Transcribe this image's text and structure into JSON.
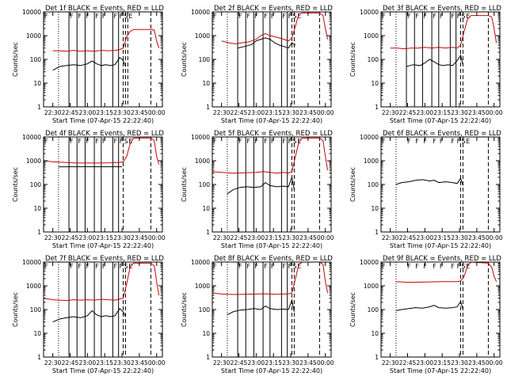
{
  "figure": {
    "ylabel": "Counts/sec",
    "xlabel": "Start Time (07-Apr-15 22:22:40)",
    "x_ticks": [
      "22:30",
      "22:45",
      "23:00",
      "23:15",
      "23:30",
      "23:45",
      "00:00"
    ],
    "y_ticks": [
      "1",
      "10",
      "100",
      "1000",
      "10000"
    ],
    "colors": {
      "events": "#000000",
      "lld": "#cc0000",
      "axes": "#000000"
    }
  },
  "chart_data": [
    {
      "type": "line",
      "title": "Det 1f BLACK = Events, RED = LLD",
      "xlabel": "Start Time (07-Apr-15 22:22:40)",
      "ylabel": "Counts/sec",
      "xlim": [
        "22:22",
        "00:05"
      ],
      "ylim": [
        1,
        10000
      ],
      "yscale": "log",
      "series": [
        {
          "name": "Events",
          "color": "#000000",
          "x": [
            "22:30",
            "22:36",
            "22:42",
            "22:48",
            "22:54",
            "23:00",
            "23:04",
            "23:08",
            "23:12",
            "23:16",
            "23:20",
            "23:24",
            "23:28",
            "23:31",
            "23:33"
          ],
          "values": [
            35,
            50,
            55,
            60,
            55,
            65,
            85,
            65,
            55,
            60,
            55,
            60,
            120,
            90,
            50
          ]
        },
        {
          "name": "LLD",
          "color": "#cc0000",
          "x": [
            "22:30",
            "22:36",
            "22:42",
            "22:48",
            "22:54",
            "23:00",
            "23:06",
            "23:12",
            "23:18",
            "23:24",
            "23:28",
            "23:31",
            "23:34",
            "23:37",
            "23:40",
            "23:55",
            "23:58",
            "00:00",
            "00:02"
          ],
          "values": [
            230,
            230,
            220,
            240,
            220,
            230,
            220,
            240,
            230,
            240,
            260,
            300,
            900,
            1500,
            1800,
            1800,
            1700,
            600,
            300
          ]
        }
      ],
      "solid_lines": [
        "22:44",
        "22:51",
        "22:58",
        "23:06",
        "23:12",
        "23:22",
        "23:27"
      ],
      "dotted_lines": [
        "22:35"
      ],
      "dashed_lines": [
        "23:31",
        "23:33",
        "23:35",
        "23:55"
      ],
      "markers": [
        "F",
        "F",
        "F",
        "F",
        "F",
        "F",
        "F",
        "F",
        "S",
        "E"
      ]
    },
    {
      "type": "line",
      "title": "Det 2f BLACK = Events, RED = LLD",
      "xlabel": "Start Time (07-Apr-15 22:22:40)",
      "ylabel": "Counts/sec",
      "xlim": [
        "22:22",
        "00:05"
      ],
      "ylim": [
        1,
        10000
      ],
      "yscale": "log",
      "series": [
        {
          "name": "Events",
          "color": "#000000",
          "x": [
            "22:44",
            "22:50",
            "22:56",
            "23:00",
            "23:04",
            "23:08",
            "23:12",
            "23:16",
            "23:20",
            "23:24",
            "23:28",
            "23:31",
            "23:34"
          ],
          "values": [
            300,
            350,
            420,
            600,
            700,
            800,
            700,
            500,
            400,
            350,
            300,
            500,
            400
          ]
        },
        {
          "name": "LLD",
          "color": "#cc0000",
          "x": [
            "22:30",
            "22:36",
            "22:42",
            "22:48",
            "22:54",
            "23:00",
            "23:04",
            "23:08",
            "23:12",
            "23:16",
            "23:20",
            "23:24",
            "23:28",
            "23:31",
            "23:34",
            "23:37",
            "23:40",
            "23:55",
            "23:58",
            "00:00",
            "00:02"
          ],
          "values": [
            600,
            500,
            450,
            500,
            550,
            700,
            1000,
            1200,
            1000,
            900,
            800,
            700,
            600,
            800,
            2500,
            8000,
            9000,
            9000,
            7000,
            2000,
            700
          ]
        }
      ],
      "solid_lines": [
        "22:44",
        "22:51",
        "22:58",
        "23:06",
        "23:12",
        "23:22",
        "23:27"
      ],
      "dotted_lines": [
        "22:35"
      ],
      "dashed_lines": [
        "23:31",
        "23:33",
        "23:55"
      ],
      "markers": [
        "F",
        "F",
        "F",
        "F",
        "F",
        "F",
        "F",
        "F",
        "S",
        "E"
      ]
    },
    {
      "type": "line",
      "title": "Det 3f BLACK = Events, RED = LLD",
      "xlabel": "Start Time (07-Apr-15 22:22:40)",
      "ylabel": "Counts/sec",
      "xlim": [
        "22:22",
        "00:05"
      ],
      "ylim": [
        1,
        10000
      ],
      "yscale": "log",
      "series": [
        {
          "name": "Events",
          "color": "#000000",
          "x": [
            "22:44",
            "22:50",
            "22:56",
            "23:00",
            "23:04",
            "23:08",
            "23:12",
            "23:16",
            "23:20",
            "23:24",
            "23:28",
            "23:31",
            "23:33"
          ],
          "values": [
            50,
            60,
            55,
            70,
            100,
            80,
            60,
            55,
            60,
            55,
            90,
            150,
            60
          ]
        },
        {
          "name": "LLD",
          "color": "#cc0000",
          "x": [
            "22:30",
            "22:36",
            "22:42",
            "22:48",
            "22:54",
            "23:00",
            "23:06",
            "23:12",
            "23:18",
            "23:24",
            "23:28",
            "23:31",
            "23:34",
            "23:37",
            "23:40",
            "23:55",
            "23:58",
            "00:00",
            "00:02"
          ],
          "values": [
            300,
            300,
            280,
            300,
            300,
            320,
            300,
            320,
            300,
            320,
            300,
            400,
            1500,
            5000,
            7000,
            7000,
            6000,
            2000,
            500
          ]
        }
      ],
      "solid_lines": [
        "22:44",
        "22:51",
        "22:58",
        "23:06",
        "23:12",
        "23:22",
        "23:27"
      ],
      "dotted_lines": [
        "22:35"
      ],
      "dashed_lines": [
        "23:31",
        "23:33",
        "23:55"
      ],
      "markers": [
        "F",
        "F",
        "F",
        "F",
        "F",
        "F",
        "F",
        "F",
        "S",
        "E"
      ]
    },
    {
      "type": "line",
      "title": "Det 4f BLACK = Events, RED = LLD",
      "xlabel": "Start Time (07-Apr-15 22:22:40)",
      "ylabel": "Counts/sec",
      "xlim": [
        "22:22",
        "00:05"
      ],
      "ylim": [
        1,
        10000
      ],
      "yscale": "log",
      "series": [
        {
          "name": "Events",
          "color": "#000000",
          "x": [
            "22:35",
            "22:45",
            "23:00",
            "23:15",
            "23:28",
            "23:30"
          ],
          "values": [
            550,
            560,
            560,
            560,
            560,
            560
          ]
        },
        {
          "name": "LLD",
          "color": "#cc0000",
          "x": [
            "22:22",
            "22:30",
            "22:40",
            "22:50",
            "23:00",
            "23:10",
            "23:20",
            "23:28",
            "23:31",
            "23:34",
            "23:37",
            "23:40",
            "23:55",
            "23:58",
            "00:00",
            "00:02"
          ],
          "values": [
            1000,
            900,
            850,
            800,
            800,
            800,
            820,
            850,
            900,
            1500,
            5000,
            9000,
            9000,
            7000,
            1500,
            700
          ]
        }
      ],
      "solid_lines": [
        "22:44",
        "22:51",
        "22:58",
        "23:06",
        "23:12",
        "23:22",
        "23:27"
      ],
      "dotted_lines": [
        "22:35"
      ],
      "dashed_lines": [
        "23:31",
        "23:55"
      ],
      "markers": [
        "F",
        "F",
        "F",
        "F",
        "F",
        "F",
        "F",
        "F",
        "S",
        "E"
      ]
    },
    {
      "type": "line",
      "title": "Det 5f BLACK = Events, RED = LLD",
      "xlabel": "Start Time (07-Apr-15 22:22:40)",
      "ylabel": "Counts/sec",
      "xlim": [
        "22:22",
        "00:05"
      ],
      "ylim": [
        1,
        10000
      ],
      "yscale": "log",
      "series": [
        {
          "name": "Events",
          "color": "#000000",
          "x": [
            "22:35",
            "22:40",
            "22:46",
            "22:52",
            "22:58",
            "23:04",
            "23:08",
            "23:12",
            "23:18",
            "23:24",
            "23:28",
            "23:31",
            "23:33"
          ],
          "values": [
            40,
            60,
            75,
            80,
            75,
            80,
            120,
            90,
            80,
            85,
            80,
            200,
            60
          ]
        },
        {
          "name": "LLD",
          "color": "#cc0000",
          "x": [
            "22:22",
            "22:30",
            "22:40",
            "22:50",
            "23:00",
            "23:06",
            "23:12",
            "23:18",
            "23:24",
            "23:28",
            "23:31",
            "23:34",
            "23:37",
            "23:40",
            "23:55",
            "23:58",
            "00:00",
            "00:02"
          ],
          "values": [
            350,
            320,
            300,
            310,
            320,
            350,
            320,
            300,
            320,
            300,
            350,
            1500,
            6000,
            9000,
            9000,
            7000,
            1500,
            400
          ]
        }
      ],
      "solid_lines": [
        "22:44",
        "22:51",
        "22:58",
        "23:06",
        "23:12",
        "23:22",
        "23:27"
      ],
      "dotted_lines": [
        "22:35"
      ],
      "dashed_lines": [
        "23:31",
        "23:33",
        "23:55"
      ],
      "markers": [
        "F",
        "F",
        "F",
        "F",
        "F",
        "F",
        "F",
        "F",
        "S",
        "E"
      ]
    },
    {
      "type": "line",
      "title": "Det 6f BLACK = Events, RED = LLD",
      "xlabel": "Start Time (07-Apr-15 22:22:40)",
      "ylabel": "Counts/sec",
      "xlim": [
        "22:22",
        "00:05"
      ],
      "ylim": [
        1,
        10000
      ],
      "yscale": "log",
      "series": [
        {
          "name": "Events",
          "color": "#000000",
          "x": [
            "22:35",
            "22:40",
            "22:46",
            "22:52",
            "22:58",
            "23:04",
            "23:08",
            "23:12",
            "23:18",
            "23:24",
            "23:28",
            "23:31",
            "23:33"
          ],
          "values": [
            100,
            120,
            130,
            150,
            160,
            140,
            150,
            120,
            130,
            120,
            110,
            180,
            90
          ]
        }
      ],
      "solid_lines": [],
      "dotted_lines": [
        "22:35"
      ],
      "dashed_lines": [
        "23:31",
        "23:33",
        "23:55"
      ],
      "markers": [
        "F",
        "F",
        "F",
        "F",
        "F",
        "F",
        "F",
        "F",
        "S",
        "E"
      ]
    },
    {
      "type": "line",
      "title": "Det 7f BLACK = Events, RED = LLD",
      "xlabel": "Start Time (07-Apr-15 22:22:40)",
      "ylabel": "Counts/sec",
      "xlim": [
        "22:22",
        "00:05"
      ],
      "ylim": [
        1,
        10000
      ],
      "yscale": "log",
      "series": [
        {
          "name": "Events",
          "color": "#000000",
          "x": [
            "22:30",
            "22:36",
            "22:42",
            "22:48",
            "22:54",
            "23:00",
            "23:04",
            "23:08",
            "23:12",
            "23:16",
            "23:20",
            "23:24",
            "23:28",
            "23:31",
            "23:33"
          ],
          "values": [
            30,
            40,
            45,
            50,
            45,
            55,
            90,
            60,
            50,
            55,
            50,
            55,
            110,
            80,
            50
          ]
        },
        {
          "name": "LLD",
          "color": "#cc0000",
          "x": [
            "22:22",
            "22:30",
            "22:36",
            "22:42",
            "22:48",
            "22:54",
            "23:00",
            "23:06",
            "23:12",
            "23:18",
            "23:24",
            "23:28",
            "23:31",
            "23:34",
            "23:37",
            "23:40",
            "23:55",
            "23:58",
            "00:00",
            "00:02"
          ],
          "values": [
            300,
            260,
            250,
            240,
            260,
            250,
            260,
            250,
            270,
            260,
            250,
            280,
            300,
            1200,
            6000,
            9000,
            9000,
            7000,
            1500,
            400
          ]
        }
      ],
      "solid_lines": [
        "22:44",
        "22:51",
        "22:58",
        "23:06",
        "23:12",
        "23:22",
        "23:27"
      ],
      "dotted_lines": [
        "22:35"
      ],
      "dashed_lines": [
        "23:31",
        "23:33",
        "23:55"
      ],
      "markers": [
        "F",
        "F",
        "F",
        "F",
        "F",
        "F",
        "F",
        "F",
        "S",
        "E"
      ]
    },
    {
      "type": "line",
      "title": "Det 8f BLACK = Events, RED = LLD",
      "xlabel": "Start Time (07-Apr-15 22:22:40)",
      "ylabel": "Counts/sec",
      "xlim": [
        "22:22",
        "00:05"
      ],
      "ylim": [
        1,
        10000
      ],
      "yscale": "log",
      "series": [
        {
          "name": "Events",
          "color": "#000000",
          "x": [
            "22:35",
            "22:40",
            "22:46",
            "22:52",
            "22:58",
            "23:04",
            "23:08",
            "23:12",
            "23:18",
            "23:24",
            "23:28",
            "23:31",
            "23:33"
          ],
          "values": [
            60,
            80,
            95,
            100,
            110,
            100,
            140,
            110,
            100,
            105,
            100,
            250,
            80
          ]
        },
        {
          "name": "LLD",
          "color": "#cc0000",
          "x": [
            "22:22",
            "22:30",
            "22:40",
            "22:50",
            "23:00",
            "23:06",
            "23:12",
            "23:18",
            "23:24",
            "23:28",
            "23:31",
            "23:34",
            "23:37",
            "23:40",
            "23:55",
            "23:58",
            "00:00",
            "00:02"
          ],
          "values": [
            500,
            450,
            430,
            440,
            450,
            460,
            450,
            440,
            450,
            460,
            500,
            2000,
            8000,
            10000,
            10000,
            8000,
            1500,
            500
          ]
        }
      ],
      "solid_lines": [
        "22:44",
        "22:51",
        "22:58",
        "23:06",
        "23:12",
        "23:22",
        "23:27"
      ],
      "dotted_lines": [
        "22:35"
      ],
      "dashed_lines": [
        "23:31",
        "23:33",
        "23:55"
      ],
      "markers": [
        "F",
        "F",
        "F",
        "F",
        "F",
        "F",
        "F",
        "F",
        "S",
        "E"
      ]
    },
    {
      "type": "line",
      "title": "Det 9f BLACK = Events, RED = LLD",
      "xlabel": "Start Time (07-Apr-15 22:22:40)",
      "ylabel": "Counts/sec",
      "xlim": [
        "22:22",
        "00:05"
      ],
      "ylim": [
        1,
        10000
      ],
      "yscale": "log",
      "series": [
        {
          "name": "Events",
          "color": "#000000",
          "x": [
            "22:35",
            "22:40",
            "22:46",
            "22:52",
            "22:58",
            "23:04",
            "23:08",
            "23:12",
            "23:18",
            "23:24",
            "23:28",
            "23:31",
            "23:33"
          ],
          "values": [
            90,
            100,
            110,
            120,
            115,
            130,
            150,
            120,
            115,
            120,
            130,
            220,
            100
          ]
        },
        {
          "name": "LLD",
          "color": "#cc0000",
          "x": [
            "22:35",
            "22:45",
            "23:00",
            "23:15",
            "23:28",
            "23:31",
            "23:34",
            "23:37",
            "23:40",
            "23:55",
            "23:58",
            "00:00",
            "00:02"
          ],
          "values": [
            1500,
            1400,
            1450,
            1500,
            1500,
            1600,
            2500,
            7000,
            10000,
            9000,
            6000,
            2500,
            1500
          ]
        }
      ],
      "solid_lines": [],
      "dotted_lines": [
        "22:35"
      ],
      "dashed_lines": [
        "23:31",
        "23:33",
        "23:55"
      ],
      "markers": [
        "F",
        "F",
        "F",
        "F",
        "F",
        "F",
        "F",
        "F",
        "S",
        "E"
      ]
    }
  ]
}
